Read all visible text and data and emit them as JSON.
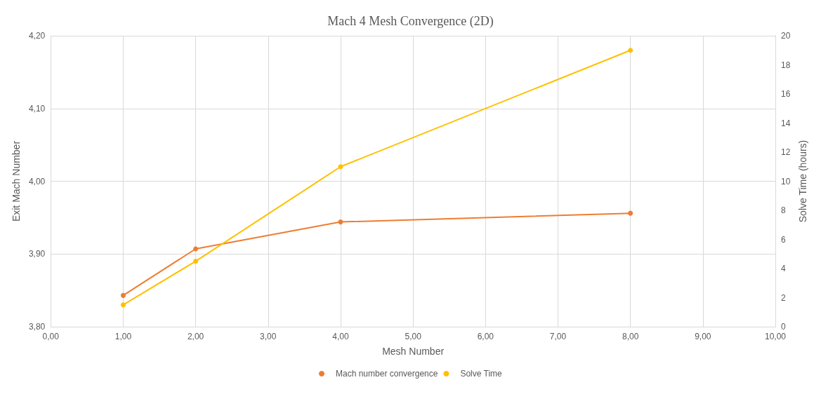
{
  "chart_data": {
    "type": "line",
    "title": "Mach 4 Mesh Convergence (2D)",
    "xlabel": "Mesh Number",
    "ylabel": "Exit Mach Number",
    "y2label": "Solve Time (hours)",
    "xlim": [
      0,
      10
    ],
    "xticks": [
      {
        "value": 0,
        "label": "0,00"
      },
      {
        "value": 1,
        "label": "1,00"
      },
      {
        "value": 2,
        "label": "2,00"
      },
      {
        "value": 3,
        "label": "3,00"
      },
      {
        "value": 4,
        "label": "4,00"
      },
      {
        "value": 5,
        "label": "5,00"
      },
      {
        "value": 6,
        "label": "6,00"
      },
      {
        "value": 7,
        "label": "7,00"
      },
      {
        "value": 8,
        "label": "8,00"
      },
      {
        "value": 9,
        "label": "9,00"
      },
      {
        "value": 10,
        "label": "10,00"
      }
    ],
    "ylim": [
      3.8,
      4.2
    ],
    "yticks": [
      {
        "value": 3.8,
        "label": "3,80"
      },
      {
        "value": 3.9,
        "label": "3,90"
      },
      {
        "value": 4.0,
        "label": "4,00"
      },
      {
        "value": 4.1,
        "label": "4,10"
      },
      {
        "value": 4.2,
        "label": "4,20"
      }
    ],
    "y2lim": [
      0,
      20
    ],
    "y2ticks": [
      0,
      2,
      4,
      6,
      8,
      10,
      12,
      14,
      16,
      18,
      20
    ],
    "x": [
      1,
      2,
      4,
      8
    ],
    "series": [
      {
        "name": "Mach number convergence",
        "color": "#ed7d31",
        "values": [
          3.843,
          3.907,
          3.944,
          3.956
        ]
      },
      {
        "name": "Solve Time",
        "color": "#ffc000",
        "axis": "y2",
        "values": [
          1.5,
          4.5,
          11,
          19
        ]
      }
    ],
    "grid": true,
    "legend": "bottom",
    "marker": "circle",
    "line_style": "solid"
  }
}
